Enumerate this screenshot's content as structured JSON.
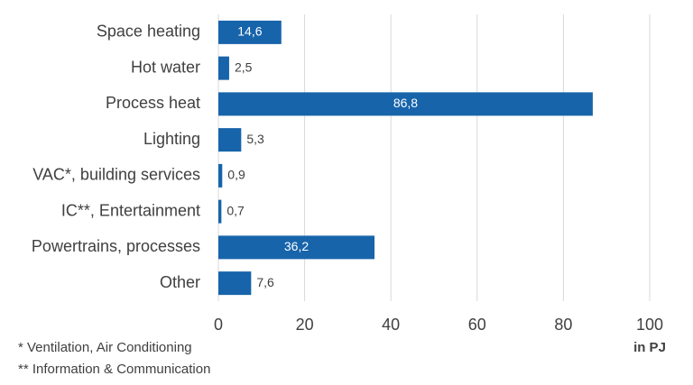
{
  "chart_data": {
    "type": "bar",
    "orientation": "horizontal",
    "categories": [
      "Space heating",
      "Hot water",
      "Process heat",
      "Lighting",
      "VAC*, building services",
      "IC**, Entertainment",
      "Powertrains, processes",
      "Other"
    ],
    "values": [
      14.6,
      2.5,
      86.8,
      5.3,
      0.9,
      0.7,
      36.2,
      7.6
    ],
    "value_labels": [
      "14,6",
      "2,5",
      "86,8",
      "5,3",
      "0,9",
      "0,7",
      "36,2",
      "7,6"
    ],
    "x_ticks": [
      0,
      20,
      40,
      60,
      80,
      100
    ],
    "xlim": [
      0,
      100
    ],
    "xunit": "in PJ",
    "grid": "vertical",
    "legend": "none",
    "bar_color": "#1764ab",
    "grid_color": "#d9d9d9",
    "label_color": "#404040",
    "inside_label_color": "#ffffff"
  },
  "footnotes": [
    "* Ventilation, Air Conditioning",
    "** Information & Communication"
  ]
}
